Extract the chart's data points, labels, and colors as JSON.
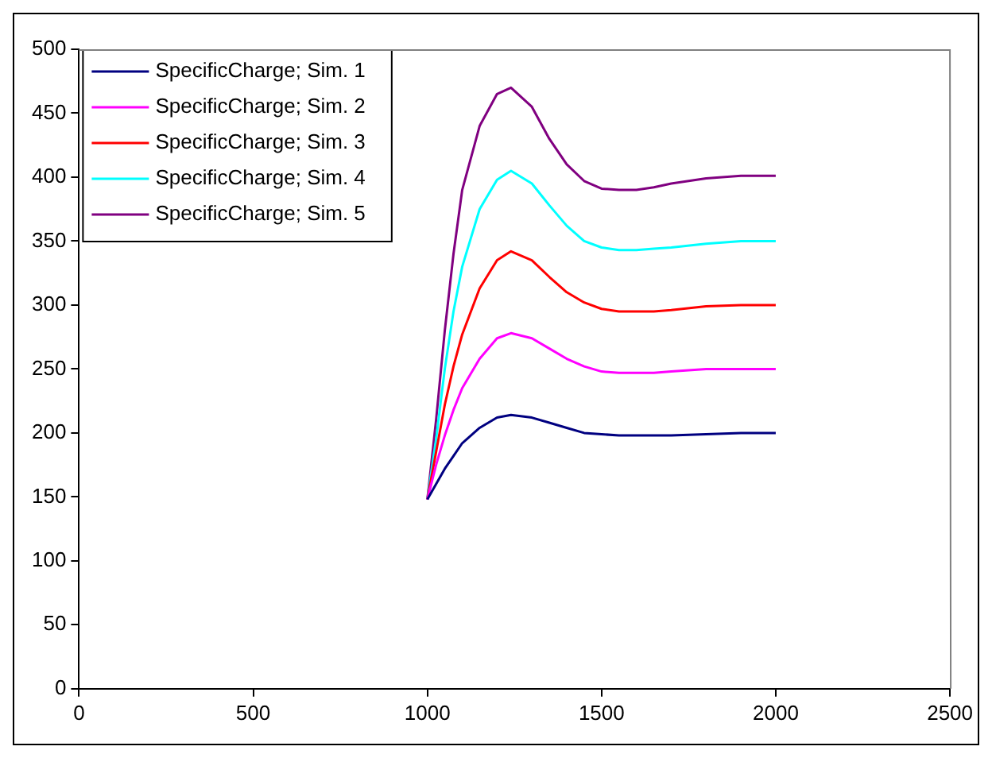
{
  "chart_data": {
    "type": "line",
    "x": [
      1000,
      1025,
      1050,
      1075,
      1100,
      1150,
      1200,
      1240,
      1300,
      1350,
      1400,
      1450,
      1500,
      1550,
      1600,
      1650,
      1700,
      1800,
      1900,
      2000
    ],
    "series": [
      {
        "name": "SpecificCharge; Sim. 1",
        "color": "#000080",
        "values": [
          148,
          160,
          172,
          182,
          192,
          204,
          212,
          214,
          212,
          208,
          204,
          200,
          199,
          198,
          198,
          198,
          198,
          199,
          200,
          200
        ]
      },
      {
        "name": "SpecificCharge; Sim. 2",
        "color": "#ff00ff",
        "values": [
          148,
          175,
          198,
          218,
          235,
          258,
          274,
          278,
          274,
          266,
          258,
          252,
          248,
          247,
          247,
          247,
          248,
          250,
          250,
          250
        ]
      },
      {
        "name": "SpecificCharge; Sim. 3",
        "color": "#ff0000",
        "values": [
          148,
          185,
          222,
          252,
          277,
          313,
          335,
          342,
          335,
          322,
          310,
          302,
          297,
          295,
          295,
          295,
          296,
          299,
          300,
          300
        ]
      },
      {
        "name": "SpecificCharge; Sim. 4",
        "color": "#00ffff",
        "values": [
          148,
          195,
          250,
          295,
          330,
          375,
          398,
          405,
          395,
          378,
          362,
          350,
          345,
          343,
          343,
          344,
          345,
          348,
          350,
          350
        ]
      },
      {
        "name": "SpecificCharge; Sim. 5",
        "color": "#800080",
        "values": [
          148,
          210,
          280,
          340,
          390,
          440,
          465,
          470,
          455,
          430,
          410,
          397,
          391,
          390,
          390,
          392,
          395,
          399,
          401,
          401
        ]
      }
    ],
    "xlim": [
      0,
      2500
    ],
    "xticks": [
      0,
      500,
      1000,
      1500,
      2000,
      2500
    ],
    "ylim": [
      0,
      500
    ],
    "yticks": [
      0,
      50,
      100,
      150,
      200,
      250,
      300,
      350,
      400,
      450,
      500
    ],
    "grid": false,
    "legend": "top left",
    "marker": "none",
    "line_style": "solid"
  }
}
